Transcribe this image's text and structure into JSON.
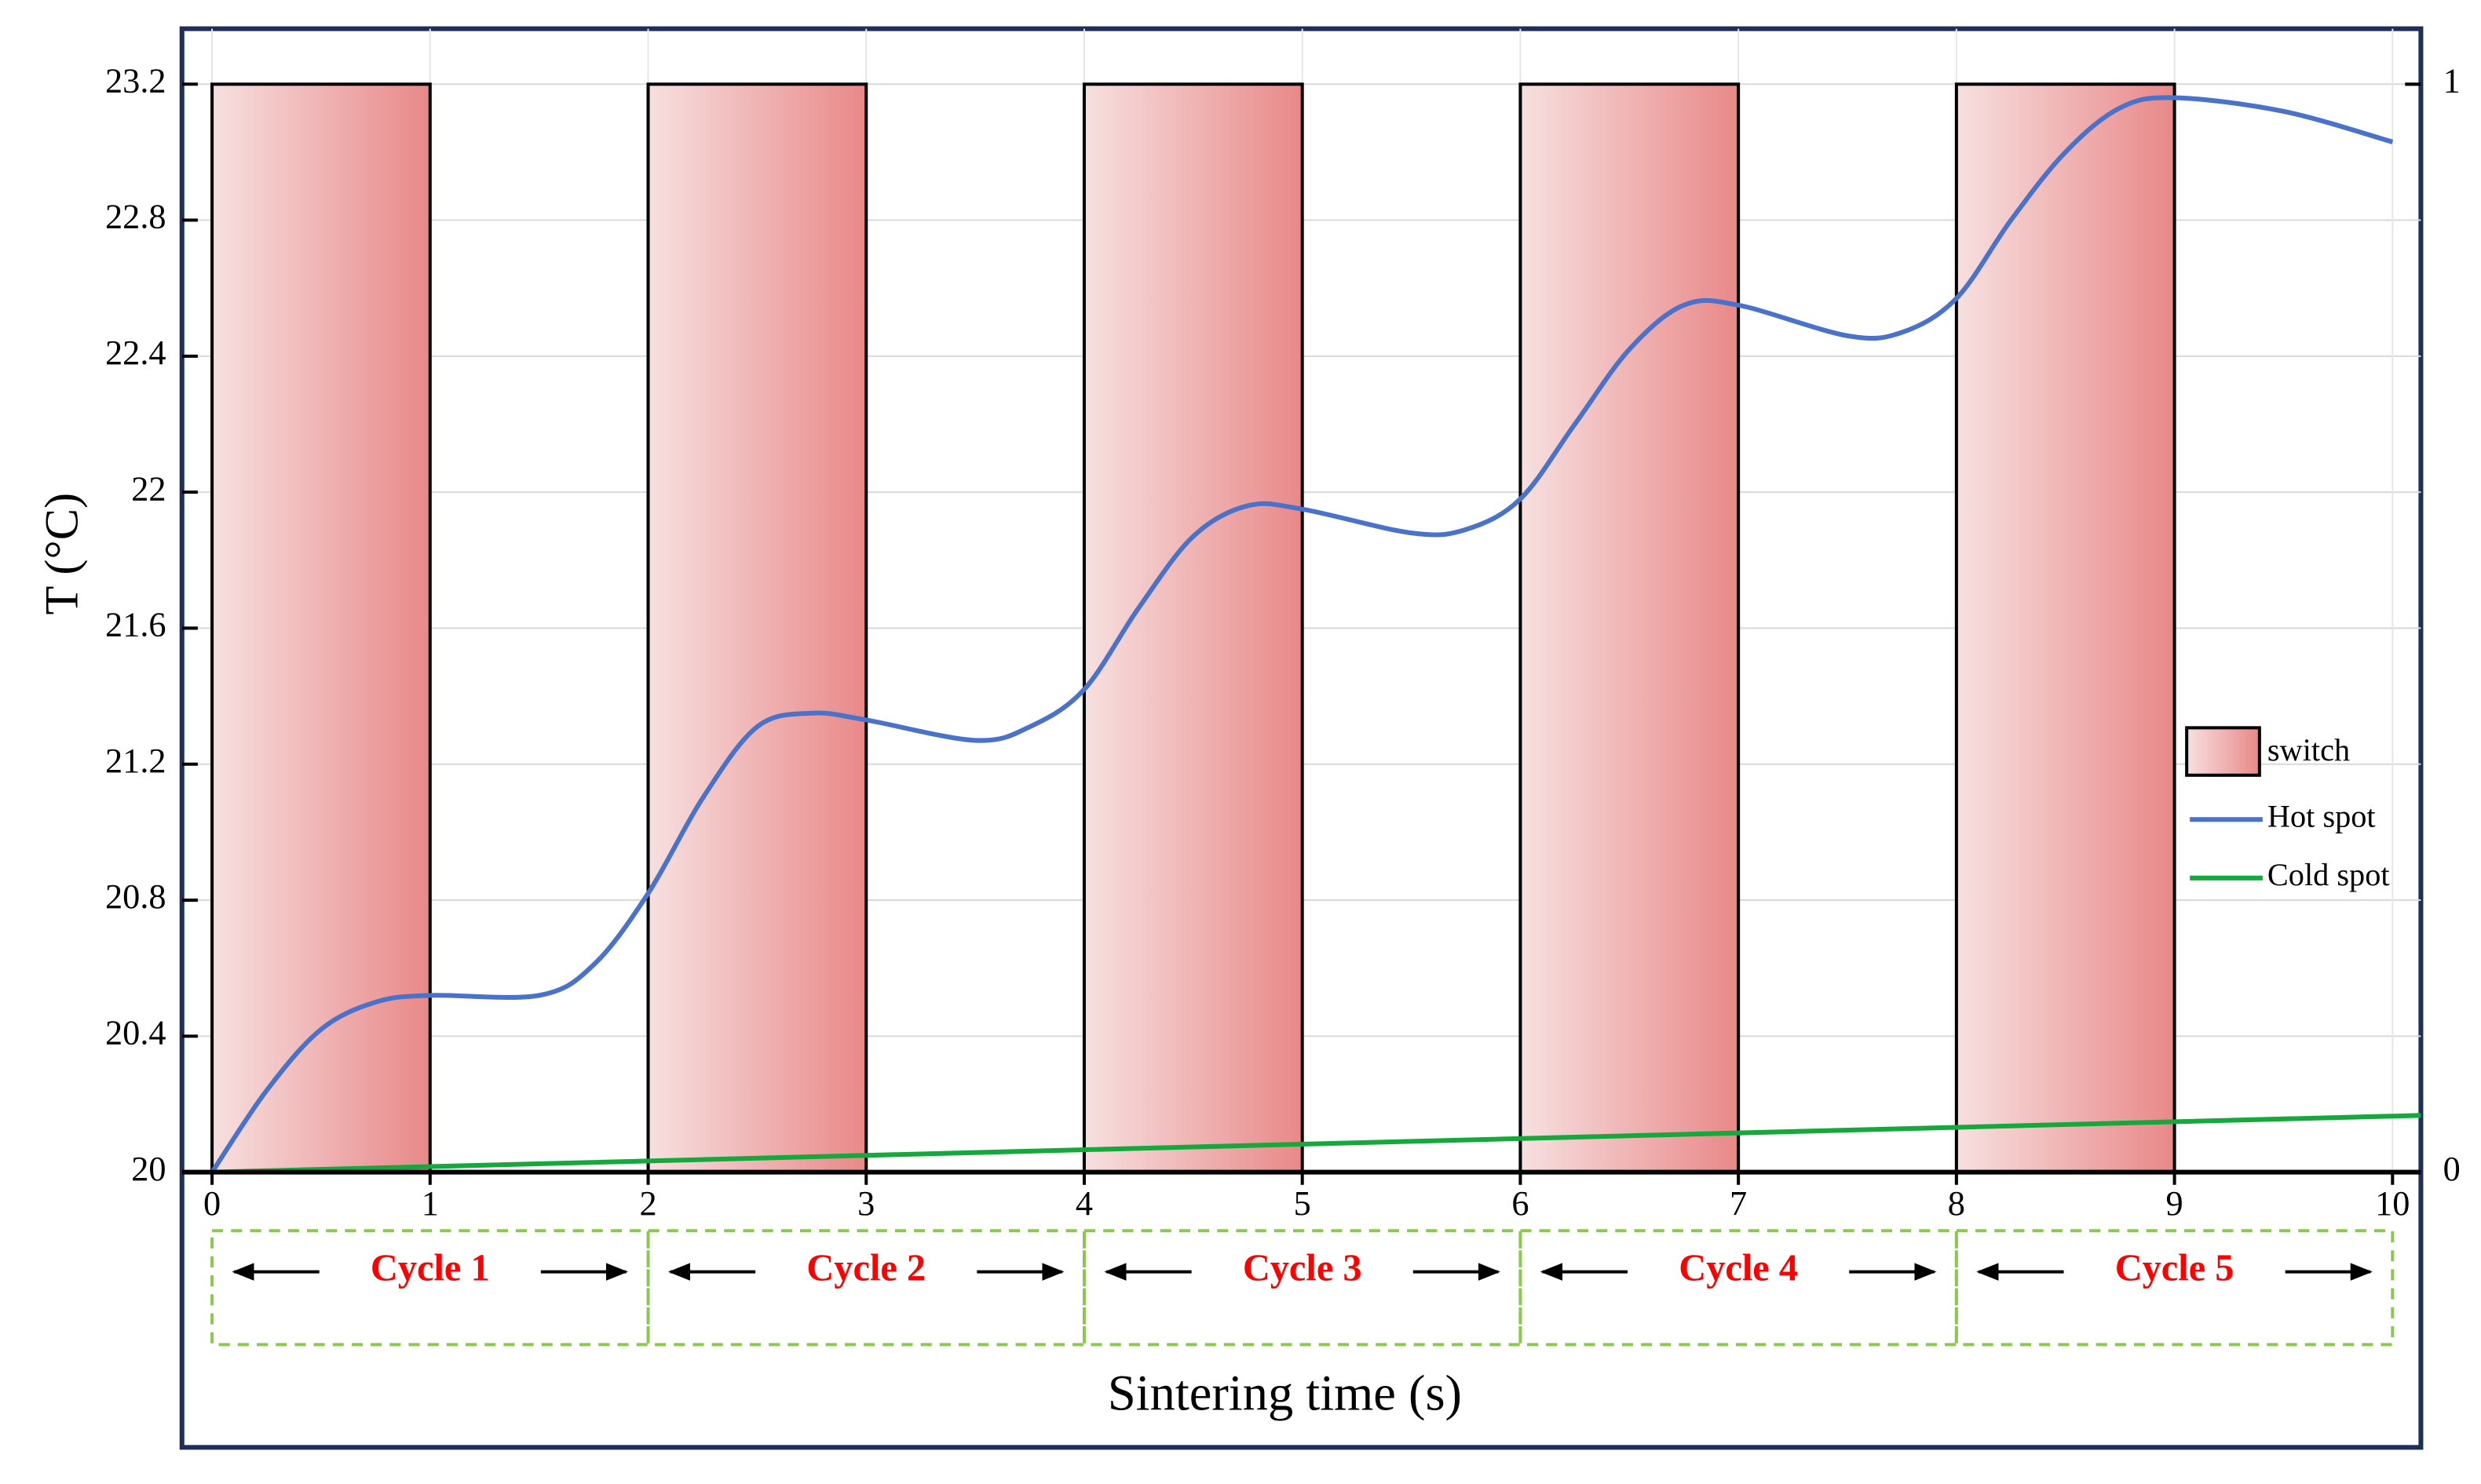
{
  "chart_data": {
    "type": "line",
    "x_label": "Sintering time (s)",
    "y_label": "T (°C)",
    "xlim": [
      -0.138,
      10.13
    ],
    "ylim": [
      20,
      23.363
    ],
    "y2lim": [
      0,
      1.051
    ],
    "xticks": [
      0,
      1,
      2,
      3,
      4,
      5,
      6,
      7,
      8,
      9,
      10
    ],
    "yticks": [
      20,
      20.4,
      20.8,
      21.2,
      21.6,
      22,
      22.4,
      22.8,
      23.2
    ],
    "y2ticks": [
      0,
      1
    ],
    "grid": true,
    "legend": "right",
    "bars": {
      "name": "switch",
      "color": "#e98888",
      "axis": "y2",
      "x_start": [
        0,
        2,
        4,
        6,
        8
      ],
      "x_end": [
        1,
        3,
        5,
        7,
        9
      ],
      "values": [
        1,
        1,
        1,
        1,
        1
      ]
    },
    "series": [
      {
        "name": "Hot spot",
        "color": "#4a72c8",
        "x": [
          0,
          0.25,
          0.5,
          0.75,
          1,
          1.5,
          1.75,
          2,
          2.25,
          2.5,
          2.75,
          3,
          3.5,
          3.75,
          4,
          4.25,
          4.5,
          4.75,
          5,
          5.5,
          5.75,
          6,
          6.25,
          6.5,
          6.75,
          7,
          7.5,
          7.75,
          8,
          8.25,
          8.5,
          8.75,
          9,
          9.5,
          10
        ],
        "values": [
          20.0,
          20.24,
          20.42,
          20.5,
          20.52,
          20.52,
          20.61,
          20.82,
          21.1,
          21.31,
          21.35,
          21.33,
          21.27,
          21.31,
          21.42,
          21.66,
          21.87,
          21.96,
          21.95,
          21.88,
          21.89,
          21.98,
          22.2,
          22.42,
          22.55,
          22.55,
          22.46,
          22.47,
          22.57,
          22.8,
          23.0,
          23.13,
          23.16,
          23.12,
          23.03
        ]
      },
      {
        "name": "Cold spot",
        "color": "#16a83c",
        "x": [
          0,
          10.13
        ],
        "values": [
          20.0,
          20.167
        ]
      }
    ],
    "cycle_color": "#ff0000",
    "cycles": [
      {
        "label": "Cycle 1",
        "start": 0,
        "end": 2
      },
      {
        "label": "Cycle 2",
        "start": 2,
        "end": 4
      },
      {
        "label": "Cycle 3",
        "start": 4,
        "end": 6
      },
      {
        "label": "Cycle 4",
        "start": 6,
        "end": 8
      },
      {
        "label": "Cycle 5",
        "start": 8,
        "end": 10
      }
    ]
  }
}
